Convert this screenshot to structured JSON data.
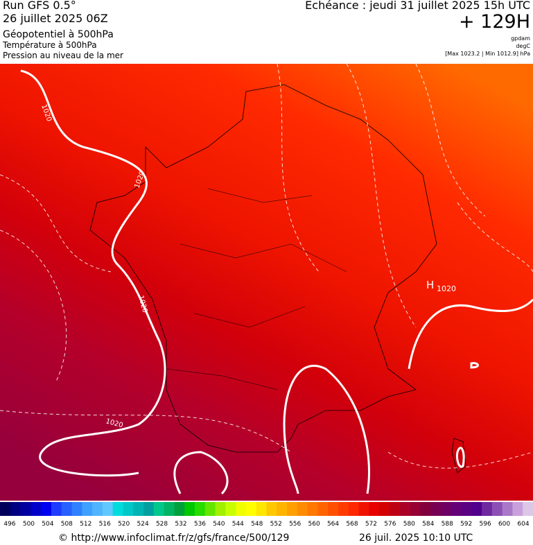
{
  "header": {
    "run": "Run GFS 0.5°",
    "run_date": "26 juillet 2025 06Z",
    "field1": "Géopotentiel à 500hPa",
    "field2": "Température à 500hPa",
    "field3": "Pression au niveau de la mer",
    "forecast": "Echéance : jeudi 31 juillet 2025 15h UTC",
    "lead": "+ 129H",
    "unit1": "gpdam",
    "unit2": "degC",
    "range": "[Max 1023.2 | Min 1012.9] hPa"
  },
  "map": {
    "labels": [
      "1020",
      "1020",
      "1020",
      "1020",
      "H",
      "1020"
    ]
  },
  "colorbar": {
    "labels": [
      "496",
      "500",
      "504",
      "508",
      "512",
      "516",
      "520",
      "524",
      "528",
      "532",
      "536",
      "540",
      "544",
      "548",
      "552",
      "556",
      "560",
      "564",
      "568",
      "572",
      "576",
      "580",
      "584",
      "588",
      "592",
      "596",
      "600",
      "604"
    ],
    "colors": [
      "#00005a",
      "#000080",
      "#0000a0",
      "#0000c8",
      "#0000f0",
      "#1e3cff",
      "#2860ff",
      "#3080ff",
      "#40a0ff",
      "#50b4ff",
      "#60c8ff",
      "#00dcdc",
      "#00c8c8",
      "#00b4b4",
      "#00a0a0",
      "#00c88c",
      "#00b464",
      "#00a03c",
      "#00c800",
      "#28dc00",
      "#64e600",
      "#a0f000",
      "#c8ff00",
      "#f0ff00",
      "#ffff00",
      "#ffe600",
      "#ffc800",
      "#ffb400",
      "#ffa000",
      "#ff8c00",
      "#ff7800",
      "#ff6400",
      "#ff5000",
      "#ff3c00",
      "#ff2800",
      "#f01400",
      "#e60000",
      "#d20000",
      "#be0014",
      "#aa0028",
      "#960032",
      "#82003c",
      "#780050",
      "#6e0064",
      "#640078",
      "#5a0082",
      "#50008c",
      "#6e28a0",
      "#8c50b4",
      "#aa78c8",
      "#c8a0dc",
      "#dcc8e6"
    ]
  },
  "footer": {
    "url": "© http://www.infoclimat.fr/z/gfs/france/500/129",
    "timestamp": "26 juil. 2025 10:10 UTC"
  }
}
